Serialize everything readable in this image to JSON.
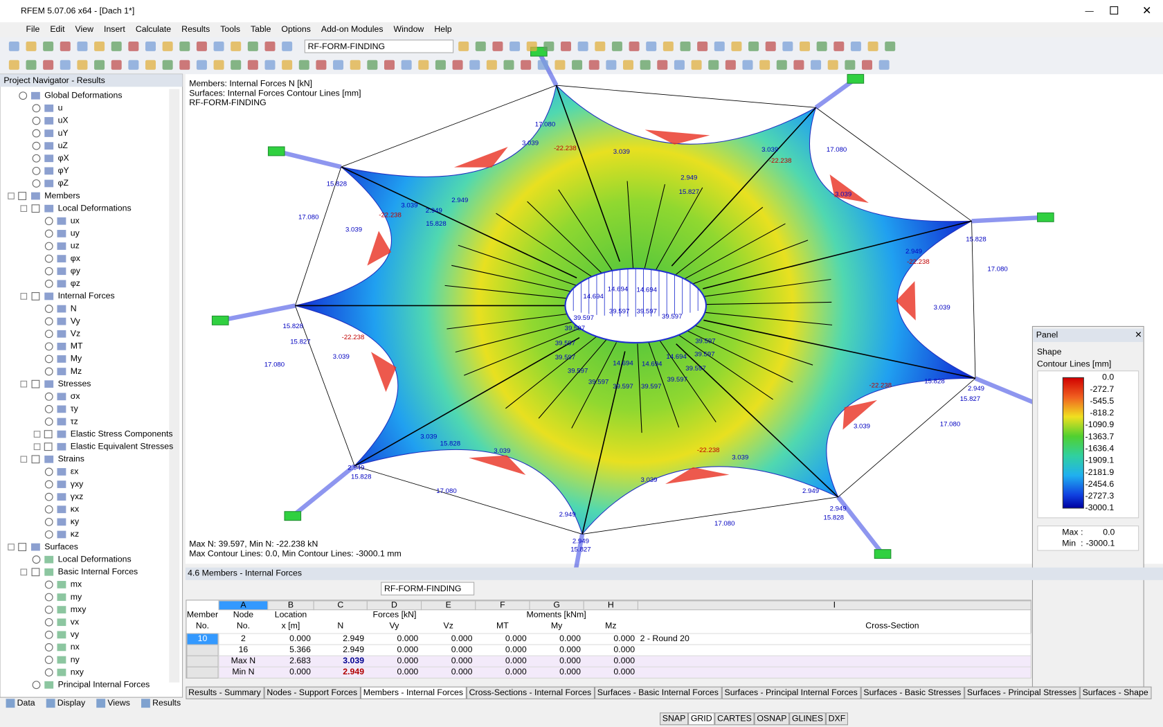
{
  "window": {
    "title": "RFEM 5.07.06 x64 - [Dach 1*]"
  },
  "menu": [
    "File",
    "Edit",
    "View",
    "Insert",
    "Calculate",
    "Results",
    "Tools",
    "Table",
    "Options",
    "Add-on Modules",
    "Window",
    "Help"
  ],
  "toolbar": {
    "combo": "RF-FORM-FINDING"
  },
  "navigator": {
    "title": "Project Navigator - Results",
    "items": [
      "Global Deformations",
      "u",
      "uX",
      "uY",
      "uZ",
      "φX",
      "φY",
      "φZ",
      "Members",
      "Local Deformations",
      "ux",
      "uy",
      "uz",
      "φx",
      "φy",
      "φz",
      "Internal Forces",
      "N",
      "Vy",
      "Vz",
      "MT",
      "My",
      "Mz",
      "Stresses",
      "σx",
      "τy",
      "τz",
      "Elastic Stress Components",
      "Elastic Equivalent Stresses",
      "Strains",
      "εx",
      "γxy",
      "γxz",
      "κx",
      "κy",
      "κz",
      "Surfaces",
      "Local Deformations",
      "Basic Internal Forces",
      "mx",
      "my",
      "mxy",
      "vx",
      "vy",
      "nx",
      "ny",
      "nxy",
      "Principal Internal Forces"
    ],
    "tabs": [
      "Data",
      "Display",
      "Views",
      "Results"
    ]
  },
  "viewport": {
    "info": [
      "Members: Internal Forces N [kN]",
      "Surfaces: Internal Forces Contour Lines [mm]",
      "RF-FORM-FINDING"
    ],
    "footer": [
      "Max N: 39.597, Min N: -22.238 kN",
      "Max Contour Lines: 0.0, Min Contour Lines: -3000.1 mm"
    ],
    "labels": [
      "17.080",
      "17.080",
      "17.080",
      "17.080",
      "17.080",
      "17.080",
      "17.080",
      "17.080",
      "3.039",
      "3.039",
      "3.039",
      "3.039",
      "3.039",
      "3.039",
      "3.039",
      "3.039",
      "3.039",
      "3.039",
      "3.039",
      "3.039",
      "3.039",
      "-22.238",
      "-22.238",
      "-22.238",
      "-22.238",
      "-22.238",
      "-22.238",
      "-22.238",
      "15.827",
      "15.828",
      "15.828",
      "15.828",
      "15.827",
      "15.828",
      "15.828",
      "15.827",
      "15.828",
      "15.828",
      "15.827",
      "15.828",
      "2.949",
      "2.949",
      "2.949",
      "2.949",
      "2.949",
      "2.949",
      "2.949",
      "2.949",
      "2.949",
      "2.949",
      "39.597",
      "39.597",
      "39.597",
      "39.597",
      "39.597",
      "39.597",
      "39.597",
      "39.597",
      "39.597",
      "39.597",
      "39.597",
      "39.597",
      "39.597",
      "39.597",
      "39.597",
      "14.694",
      "14.694",
      "14.694",
      "14.694",
      "14.694",
      "14.694"
    ]
  },
  "panel": {
    "title": "Panel",
    "subtitle": "Shape",
    "unit": "Contour Lines [mm]",
    "scale": [
      "0.0",
      "-272.7",
      "-545.5",
      "-818.2",
      "-1090.9",
      "-1363.7",
      "-1636.4",
      "-1909.1",
      "-2181.9",
      "-2454.6",
      "-2727.3",
      "-3000.1"
    ],
    "max_label": "Max",
    "min_label": "Min",
    "colon": ":",
    "max": "0.0",
    "min": "-3000.1"
  },
  "table": {
    "title": "4.6 Members - Internal Forces",
    "combo": "RF-FORM-FINDING",
    "letters": [
      "A",
      "B",
      "C",
      "D",
      "E",
      "F",
      "G",
      "H",
      "I"
    ],
    "header1": [
      "Member",
      "Node",
      "Location",
      "Forces [kN]",
      "Moments [kNm]"
    ],
    "header2": [
      "No.",
      "No.",
      "x [m]",
      "N",
      "Vy",
      "Vz",
      "MT",
      "My",
      "Mz",
      "Cross-Section"
    ],
    "rows": [
      [
        "10",
        "2",
        "0.000",
        "2.949",
        "0.000",
        "0.000",
        "0.000",
        "0.000",
        "0.000",
        "2 - Round 20"
      ],
      [
        null,
        "16",
        "5.366",
        "2.949",
        "0.000",
        "0.000",
        "0.000",
        "0.000",
        "0.000",
        null
      ],
      [
        null,
        "Max N",
        "2.683",
        "3.039",
        "0.000",
        "0.000",
        "0.000",
        "0.000",
        "0.000",
        null
      ],
      [
        null,
        "Min N",
        "0.000",
        "2.949",
        "0.000",
        "0.000",
        "0.000",
        "0.000",
        "0.000",
        null
      ]
    ],
    "tabs": [
      "Results - Summary",
      "Nodes - Support Forces",
      "Members - Internal Forces",
      "Cross-Sections - Internal Forces",
      "Surfaces - Basic Internal Forces",
      "Surfaces - Principal Internal Forces",
      "Surfaces - Basic Stresses",
      "Surfaces - Principal Stresses",
      "Surfaces - Shape"
    ]
  },
  "status": [
    "SNAP",
    "GRID",
    "CARTES",
    "OSNAP",
    "GLINES",
    "DXF"
  ]
}
